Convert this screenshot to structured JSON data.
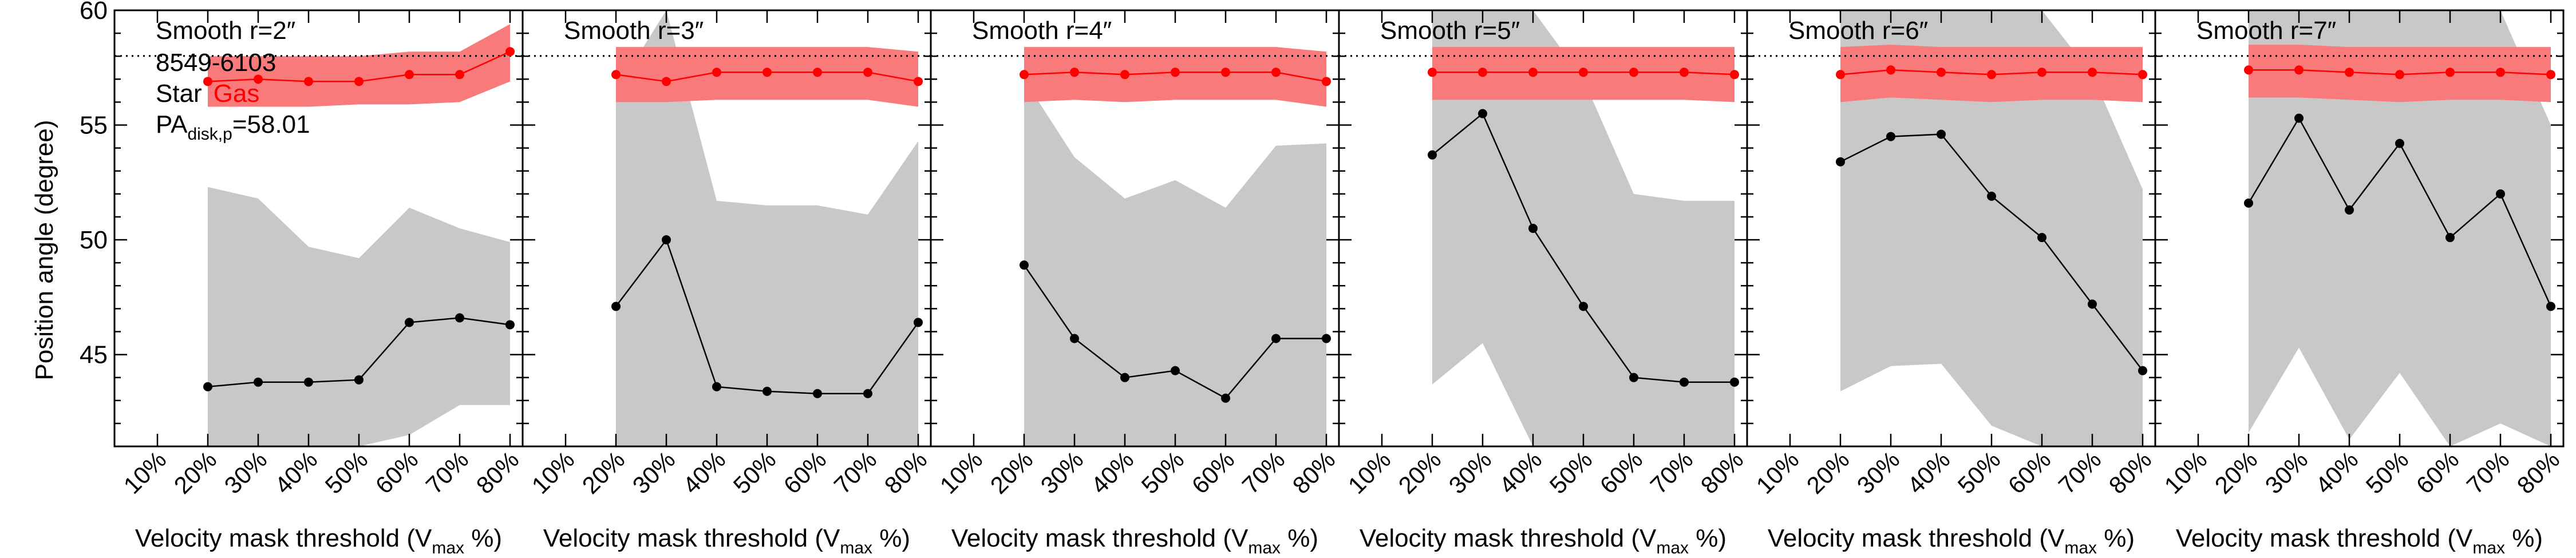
{
  "figure": {
    "ylabel": "Position angle (degree)",
    "xlabel_main": "Velocity mask threshold (V",
    "xlabel_sub": "max",
    "xlabel_tail": " %)",
    "annotations": {
      "galaxy_id": "8549-6103",
      "star_label": "Star",
      "gas_label": "Gas",
      "pa_main": "PA",
      "pa_sub": "disk,p",
      "pa_value": "=58.01"
    },
    "colors": {
      "star": "#000000",
      "gas": "#ff0000",
      "gas_band": "#f87a7a",
      "star_band": "#c8c8c8",
      "reference_line": "#000000"
    }
  },
  "chart_data": [
    {
      "type": "line",
      "title": "Smooth r=2″",
      "categories": [
        "10%",
        "20%",
        "30%",
        "40%",
        "50%",
        "60%",
        "70%",
        "80%"
      ],
      "ylim": [
        41,
        60
      ],
      "yticks": [
        45,
        50,
        55,
        60
      ],
      "reference_line": 58.01,
      "series": [
        {
          "name": "Star",
          "x": [
            "20%",
            "30%",
            "40%",
            "50%",
            "60%",
            "70%",
            "80%"
          ],
          "values": [
            43.6,
            43.8,
            43.8,
            43.9,
            46.4,
            46.6,
            46.3
          ],
          "band_low": [
            41.0,
            41.0,
            41.0,
            41.0,
            41.5,
            42.8,
            42.8
          ],
          "band_high": [
            52.3,
            51.8,
            49.7,
            49.2,
            51.4,
            50.5,
            49.9
          ]
        },
        {
          "name": "Gas",
          "x": [
            "20%",
            "30%",
            "40%",
            "50%",
            "60%",
            "70%",
            "80%"
          ],
          "values": [
            56.9,
            57.0,
            56.9,
            56.9,
            57.2,
            57.2,
            58.2
          ],
          "band_low": [
            55.8,
            55.8,
            55.8,
            55.9,
            55.9,
            56.0,
            56.9
          ],
          "band_high": [
            58.0,
            58.0,
            58.0,
            58.0,
            58.2,
            58.2,
            59.4
          ]
        }
      ]
    },
    {
      "type": "line",
      "title": "Smooth r=3″",
      "categories": [
        "10%",
        "20%",
        "30%",
        "40%",
        "50%",
        "60%",
        "70%",
        "80%"
      ],
      "ylim": [
        41,
        60
      ],
      "yticks": [
        45,
        50,
        55,
        60
      ],
      "reference_line": 58.01,
      "series": [
        {
          "name": "Star",
          "x": [
            "20%",
            "30%",
            "40%",
            "50%",
            "60%",
            "70%",
            "80%"
          ],
          "values": [
            47.1,
            50.0,
            43.6,
            43.4,
            43.3,
            43.3,
            46.4
          ],
          "band_low": [
            41.0,
            41.0,
            41.0,
            41.0,
            41.0,
            41.0,
            41.0
          ],
          "band_high": [
            56.5,
            60.0,
            51.7,
            51.5,
            51.5,
            51.1,
            54.3
          ]
        },
        {
          "name": "Gas",
          "x": [
            "20%",
            "30%",
            "40%",
            "50%",
            "60%",
            "70%",
            "80%"
          ],
          "values": [
            57.2,
            56.9,
            57.3,
            57.3,
            57.3,
            57.3,
            56.9
          ],
          "band_low": [
            56.0,
            56.0,
            56.1,
            56.1,
            56.1,
            56.1,
            55.8
          ],
          "band_high": [
            58.4,
            58.4,
            58.4,
            58.4,
            58.4,
            58.4,
            58.2
          ]
        }
      ]
    },
    {
      "type": "line",
      "title": "Smooth r=4″",
      "categories": [
        "10%",
        "20%",
        "30%",
        "40%",
        "50%",
        "60%",
        "70%",
        "80%"
      ],
      "ylim": [
        41,
        60
      ],
      "yticks": [
        45,
        50,
        55,
        60
      ],
      "reference_line": 58.01,
      "series": [
        {
          "name": "Star",
          "x": [
            "20%",
            "30%",
            "40%",
            "50%",
            "60%",
            "70%",
            "80%"
          ],
          "values": [
            48.9,
            45.7,
            44.0,
            44.3,
            43.1,
            45.7,
            45.7
          ],
          "band_low": [
            41.0,
            41.0,
            41.0,
            41.0,
            41.0,
            41.0,
            41.0
          ],
          "band_high": [
            57.0,
            53.6,
            51.8,
            52.6,
            51.4,
            54.1,
            54.2
          ]
        },
        {
          "name": "Gas",
          "x": [
            "20%",
            "30%",
            "40%",
            "50%",
            "60%",
            "70%",
            "80%"
          ],
          "values": [
            57.2,
            57.3,
            57.2,
            57.3,
            57.3,
            57.3,
            56.9
          ],
          "band_low": [
            56.0,
            56.1,
            56.0,
            56.1,
            56.1,
            56.1,
            55.8
          ],
          "band_high": [
            58.4,
            58.4,
            58.4,
            58.4,
            58.4,
            58.4,
            58.2
          ]
        }
      ]
    },
    {
      "type": "line",
      "title": "Smooth r=5″",
      "categories": [
        "10%",
        "20%",
        "30%",
        "40%",
        "50%",
        "60%",
        "70%",
        "80%"
      ],
      "ylim": [
        41,
        60
      ],
      "yticks": [
        45,
        50,
        55,
        60
      ],
      "reference_line": 58.01,
      "series": [
        {
          "name": "Star",
          "x": [
            "20%",
            "30%",
            "40%",
            "50%",
            "60%",
            "70%",
            "80%"
          ],
          "values": [
            53.7,
            55.5,
            50.5,
            47.1,
            44.0,
            43.8,
            43.8
          ],
          "band_low": [
            43.7,
            45.5,
            41.0,
            41.0,
            41.0,
            41.0,
            41.0
          ],
          "band_high": [
            60.0,
            60.0,
            60.0,
            57.0,
            52.0,
            51.7,
            51.7
          ]
        },
        {
          "name": "Gas",
          "x": [
            "20%",
            "30%",
            "40%",
            "50%",
            "60%",
            "70%",
            "80%"
          ],
          "values": [
            57.3,
            57.3,
            57.3,
            57.3,
            57.3,
            57.3,
            57.2
          ],
          "band_low": [
            56.1,
            56.1,
            56.1,
            56.1,
            56.1,
            56.1,
            56.0
          ],
          "band_high": [
            58.4,
            58.4,
            58.4,
            58.4,
            58.4,
            58.4,
            58.4
          ]
        }
      ]
    },
    {
      "type": "line",
      "title": "Smooth r=6″",
      "categories": [
        "10%",
        "20%",
        "30%",
        "40%",
        "50%",
        "60%",
        "70%",
        "80%"
      ],
      "ylim": [
        41,
        60
      ],
      "yticks": [
        45,
        50,
        55,
        60
      ],
      "reference_line": 58.01,
      "series": [
        {
          "name": "Star",
          "x": [
            "20%",
            "30%",
            "40%",
            "50%",
            "60%",
            "70%",
            "80%"
          ],
          "values": [
            53.4,
            54.5,
            54.6,
            51.9,
            50.1,
            47.2,
            44.3
          ],
          "band_low": [
            43.4,
            44.5,
            44.6,
            41.9,
            41.0,
            41.0,
            41.0
          ],
          "band_high": [
            60.0,
            60.0,
            60.0,
            60.0,
            60.0,
            57.2,
            52.2
          ]
        },
        {
          "name": "Gas",
          "x": [
            "20%",
            "30%",
            "40%",
            "50%",
            "60%",
            "70%",
            "80%"
          ],
          "values": [
            57.2,
            57.4,
            57.3,
            57.2,
            57.3,
            57.3,
            57.2
          ],
          "band_low": [
            56.0,
            56.2,
            56.1,
            56.0,
            56.1,
            56.1,
            56.0
          ],
          "band_high": [
            58.4,
            58.5,
            58.4,
            58.4,
            58.4,
            58.4,
            58.4
          ]
        }
      ]
    },
    {
      "type": "line",
      "title": "Smooth r=7″",
      "categories": [
        "10%",
        "20%",
        "30%",
        "40%",
        "50%",
        "60%",
        "70%",
        "80%"
      ],
      "ylim": [
        41,
        60
      ],
      "yticks": [
        45,
        50,
        55,
        60
      ],
      "reference_line": 58.01,
      "series": [
        {
          "name": "Star",
          "x": [
            "20%",
            "30%",
            "40%",
            "50%",
            "60%",
            "70%",
            "80%"
          ],
          "values": [
            51.6,
            55.3,
            51.3,
            54.2,
            50.1,
            52.0,
            47.1
          ],
          "band_low": [
            41.6,
            45.3,
            41.3,
            44.2,
            41.0,
            42.0,
            41.0
          ],
          "band_high": [
            60.0,
            60.0,
            60.0,
            60.0,
            60.0,
            60.0,
            55.0
          ]
        },
        {
          "name": "Gas",
          "x": [
            "20%",
            "30%",
            "40%",
            "50%",
            "60%",
            "70%",
            "80%"
          ],
          "values": [
            57.4,
            57.4,
            57.3,
            57.2,
            57.3,
            57.3,
            57.2
          ],
          "band_low": [
            56.2,
            56.2,
            56.1,
            56.0,
            56.1,
            56.1,
            56.0
          ],
          "band_high": [
            58.5,
            58.5,
            58.4,
            58.4,
            58.4,
            58.4,
            58.4
          ]
        }
      ]
    }
  ]
}
